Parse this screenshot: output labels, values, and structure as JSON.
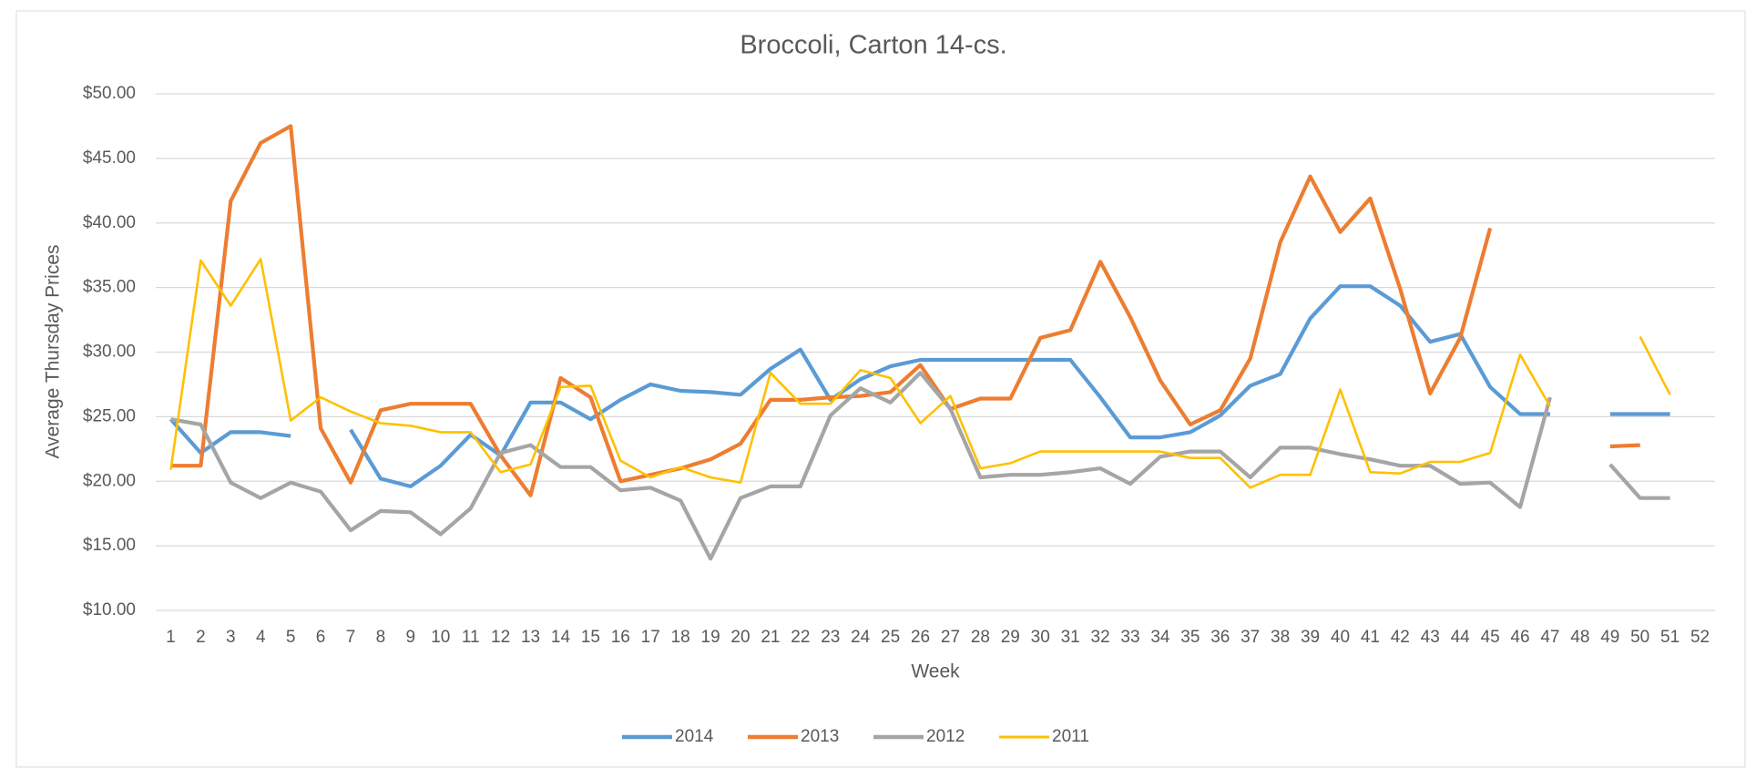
{
  "chart_data": {
    "type": "line",
    "title": "Broccoli, Carton 14-cs.",
    "x_label": "Week",
    "y_label": "Average Thursday Prices",
    "categories": [
      1,
      2,
      3,
      4,
      5,
      6,
      7,
      8,
      9,
      10,
      11,
      12,
      13,
      14,
      15,
      16,
      17,
      18,
      19,
      20,
      21,
      22,
      23,
      24,
      25,
      26,
      27,
      28,
      29,
      30,
      31,
      32,
      33,
      34,
      35,
      36,
      37,
      38,
      39,
      40,
      41,
      42,
      43,
      44,
      45,
      46,
      47,
      48,
      49,
      50,
      51,
      52
    ],
    "ylim": [
      10,
      50
    ],
    "yticks": [
      {
        "value": 10,
        "label": "$10.00"
      },
      {
        "value": 15,
        "label": "$15.00"
      },
      {
        "value": 20,
        "label": "$20.00"
      },
      {
        "value": 25,
        "label": "$25.00"
      },
      {
        "value": 30,
        "label": "$30.00"
      },
      {
        "value": 35,
        "label": "$35.00"
      },
      {
        "value": 40,
        "label": "$40.00"
      },
      {
        "value": 45,
        "label": "$45.00"
      },
      {
        "value": 50,
        "label": "$50.00"
      }
    ],
    "grid": true,
    "legend": "bottom",
    "series": [
      {
        "name": "2014",
        "color": "#5b9bd5",
        "values": [
          24.8,
          22.2,
          23.8,
          23.8,
          23.5,
          null,
          24.0,
          20.2,
          19.6,
          21.2,
          23.6,
          22.0,
          26.1,
          26.1,
          24.8,
          26.3,
          27.5,
          27.0,
          26.9,
          26.7,
          28.7,
          30.2,
          26.3,
          27.9,
          28.9,
          29.4,
          29.4,
          29.4,
          29.4,
          29.4,
          29.4,
          26.5,
          23.4,
          23.4,
          23.8,
          25.1,
          27.4,
          28.3,
          32.6,
          35.1,
          35.1,
          33.6,
          30.8,
          31.4,
          27.3,
          25.2,
          25.2,
          null,
          25.2,
          25.2,
          25.2,
          null
        ]
      },
      {
        "name": "2013",
        "color": "#ed7d31",
        "values": [
          21.2,
          21.2,
          41.7,
          46.2,
          47.5,
          24.1,
          19.9,
          25.5,
          26.0,
          26.0,
          26.0,
          22.0,
          18.9,
          28.0,
          26.5,
          20.0,
          20.5,
          21.0,
          21.7,
          22.9,
          26.3,
          26.3,
          26.5,
          26.6,
          26.9,
          29.0,
          25.6,
          26.4,
          26.4,
          31.1,
          31.7,
          37.0,
          32.7,
          27.8,
          24.4,
          25.5,
          29.5,
          38.5,
          43.6,
          39.3,
          41.9,
          34.9,
          26.8,
          31.1,
          39.6,
          null,
          null,
          null,
          22.7,
          22.8,
          null,
          null
        ]
      },
      {
        "name": "2012",
        "color": "#a5a5a5",
        "values": [
          24.8,
          24.4,
          19.9,
          18.7,
          19.9,
          19.2,
          16.2,
          17.7,
          17.6,
          15.9,
          17.9,
          22.2,
          22.8,
          21.1,
          21.1,
          19.3,
          19.5,
          18.5,
          14.0,
          18.7,
          19.6,
          19.6,
          25.1,
          27.2,
          26.1,
          28.4,
          25.6,
          20.3,
          20.5,
          20.5,
          20.7,
          21.0,
          19.8,
          21.9,
          22.3,
          22.3,
          20.3,
          22.6,
          22.6,
          22.1,
          21.7,
          21.2,
          21.2,
          19.8,
          19.9,
          18.0,
          26.5,
          null,
          21.3,
          18.7,
          18.7,
          null
        ]
      },
      {
        "name": "2011",
        "color": "#ffc000",
        "values": [
          20.9,
          37.1,
          33.6,
          37.2,
          24.7,
          26.5,
          25.4,
          24.5,
          24.3,
          23.8,
          23.8,
          20.7,
          21.3,
          27.3,
          27.4,
          21.6,
          20.3,
          21.1,
          20.3,
          19.9,
          28.4,
          26.0,
          26.0,
          28.6,
          28.0,
          24.5,
          26.6,
          21.0,
          21.4,
          22.3,
          22.3,
          22.3,
          22.3,
          22.3,
          21.8,
          21.8,
          19.5,
          20.5,
          20.5,
          27.1,
          20.7,
          20.6,
          21.5,
          21.5,
          22.2,
          29.8,
          25.8,
          null,
          null,
          31.2,
          26.7,
          null
        ]
      }
    ]
  }
}
